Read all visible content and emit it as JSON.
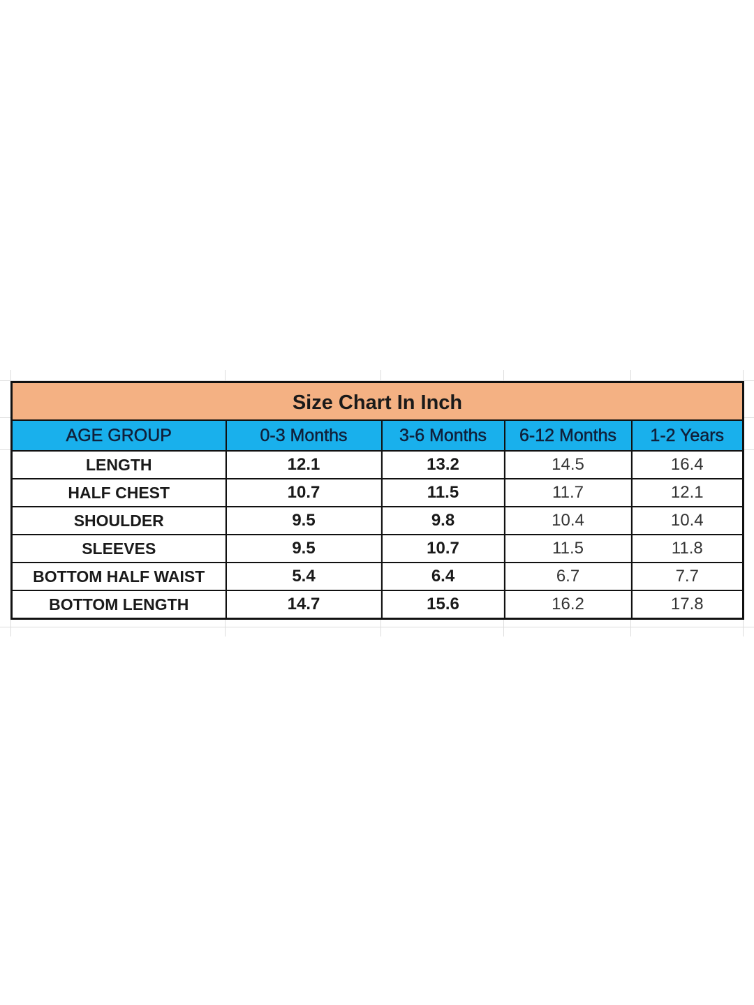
{
  "title": "Size Chart In Inch",
  "header": [
    "AGE GROUP",
    "0-3 Months",
    "3-6 Months",
    "6-12 Months",
    "1-2 Years"
  ],
  "rows": [
    {
      "label": "LENGTH",
      "values": [
        "12.1",
        "13.2",
        "14.5",
        "16.4"
      ]
    },
    {
      "label": "HALF CHEST",
      "values": [
        "10.7",
        "11.5",
        "11.7",
        "12.1"
      ]
    },
    {
      "label": "SHOULDER",
      "values": [
        "9.5",
        "9.8",
        "10.4",
        "10.4"
      ]
    },
    {
      "label": "SLEEVES",
      "values": [
        "9.5",
        "10.7",
        "11.5",
        "11.8"
      ]
    },
    {
      "label": "BOTTOM  HALF WAIST",
      "values": [
        "5.4",
        "6.4",
        "6.7",
        "7.7"
      ]
    },
    {
      "label": "BOTTOM LENGTH",
      "values": [
        "14.7",
        "15.6",
        "16.2",
        "17.8"
      ]
    }
  ],
  "colors": {
    "title_bg": "#f4b183",
    "header_bg": "#19b0ec"
  }
}
